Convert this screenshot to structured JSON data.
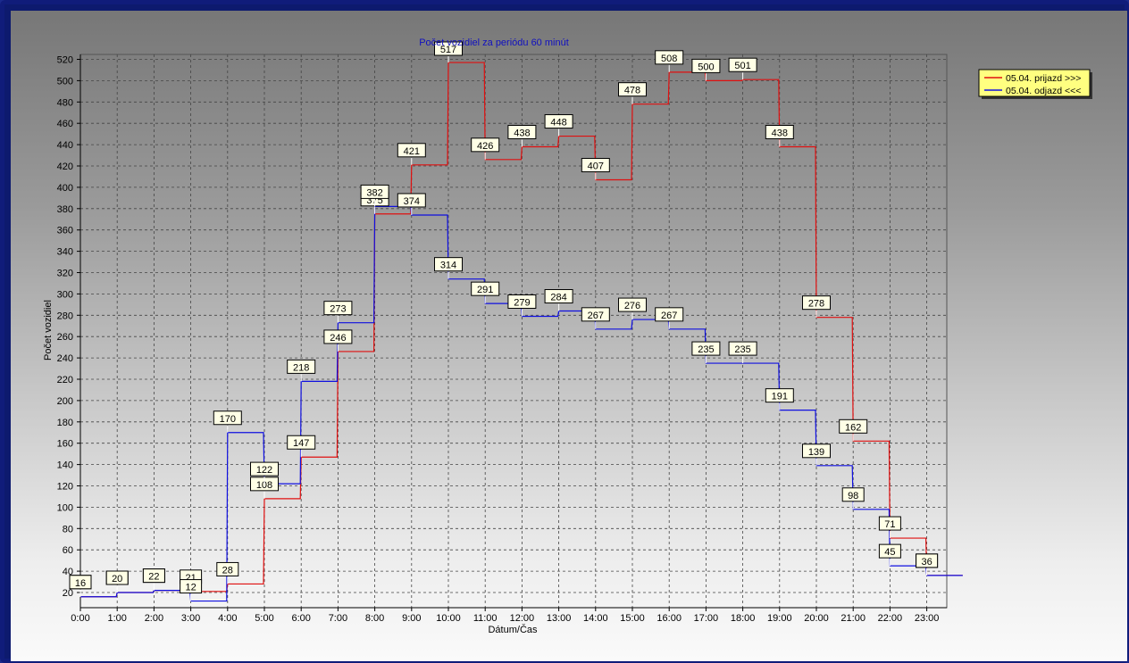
{
  "chart_data": {
    "type": "line",
    "step": true,
    "title": "Počet vozidiel za periódu 60 minút",
    "xlabel": "Dátum/Čas",
    "ylabel": "Počet vozidiel",
    "categories": [
      "0:00",
      "1:00",
      "2:00",
      "3:00",
      "4:00",
      "5:00",
      "6:00",
      "7:00",
      "8:00",
      "9:00",
      "10:00",
      "11:00",
      "12:00",
      "13:00",
      "14:00",
      "15:00",
      "16:00",
      "17:00",
      "18:00",
      "19:00",
      "20:00",
      "21:00",
      "22:00",
      "23:00"
    ],
    "yticks": [
      20,
      40,
      60,
      80,
      100,
      120,
      140,
      160,
      180,
      200,
      220,
      240,
      260,
      280,
      300,
      320,
      340,
      360,
      380,
      400,
      420,
      440,
      460,
      480,
      500,
      520
    ],
    "ylim": [
      10,
      530
    ],
    "grid": true,
    "legend_position": "top-right",
    "series": [
      {
        "name": "05.04.  prijazd >>>",
        "color": "#e01010",
        "values": [
          16,
          20,
          22,
          21,
          28,
          108,
          147,
          246,
          375,
          421,
          517,
          426,
          438,
          448,
          407,
          478,
          508,
          500,
          501,
          438,
          278,
          162,
          71,
          36
        ]
      },
      {
        "name": "05.04.  odjazd <<<",
        "color": "#1010e0",
        "values": [
          16,
          20,
          22,
          12,
          170,
          122,
          218,
          273,
          382,
          374,
          314,
          291,
          279,
          284,
          267,
          276,
          267,
          235,
          235,
          191,
          139,
          98,
          45,
          36
        ]
      }
    ]
  }
}
